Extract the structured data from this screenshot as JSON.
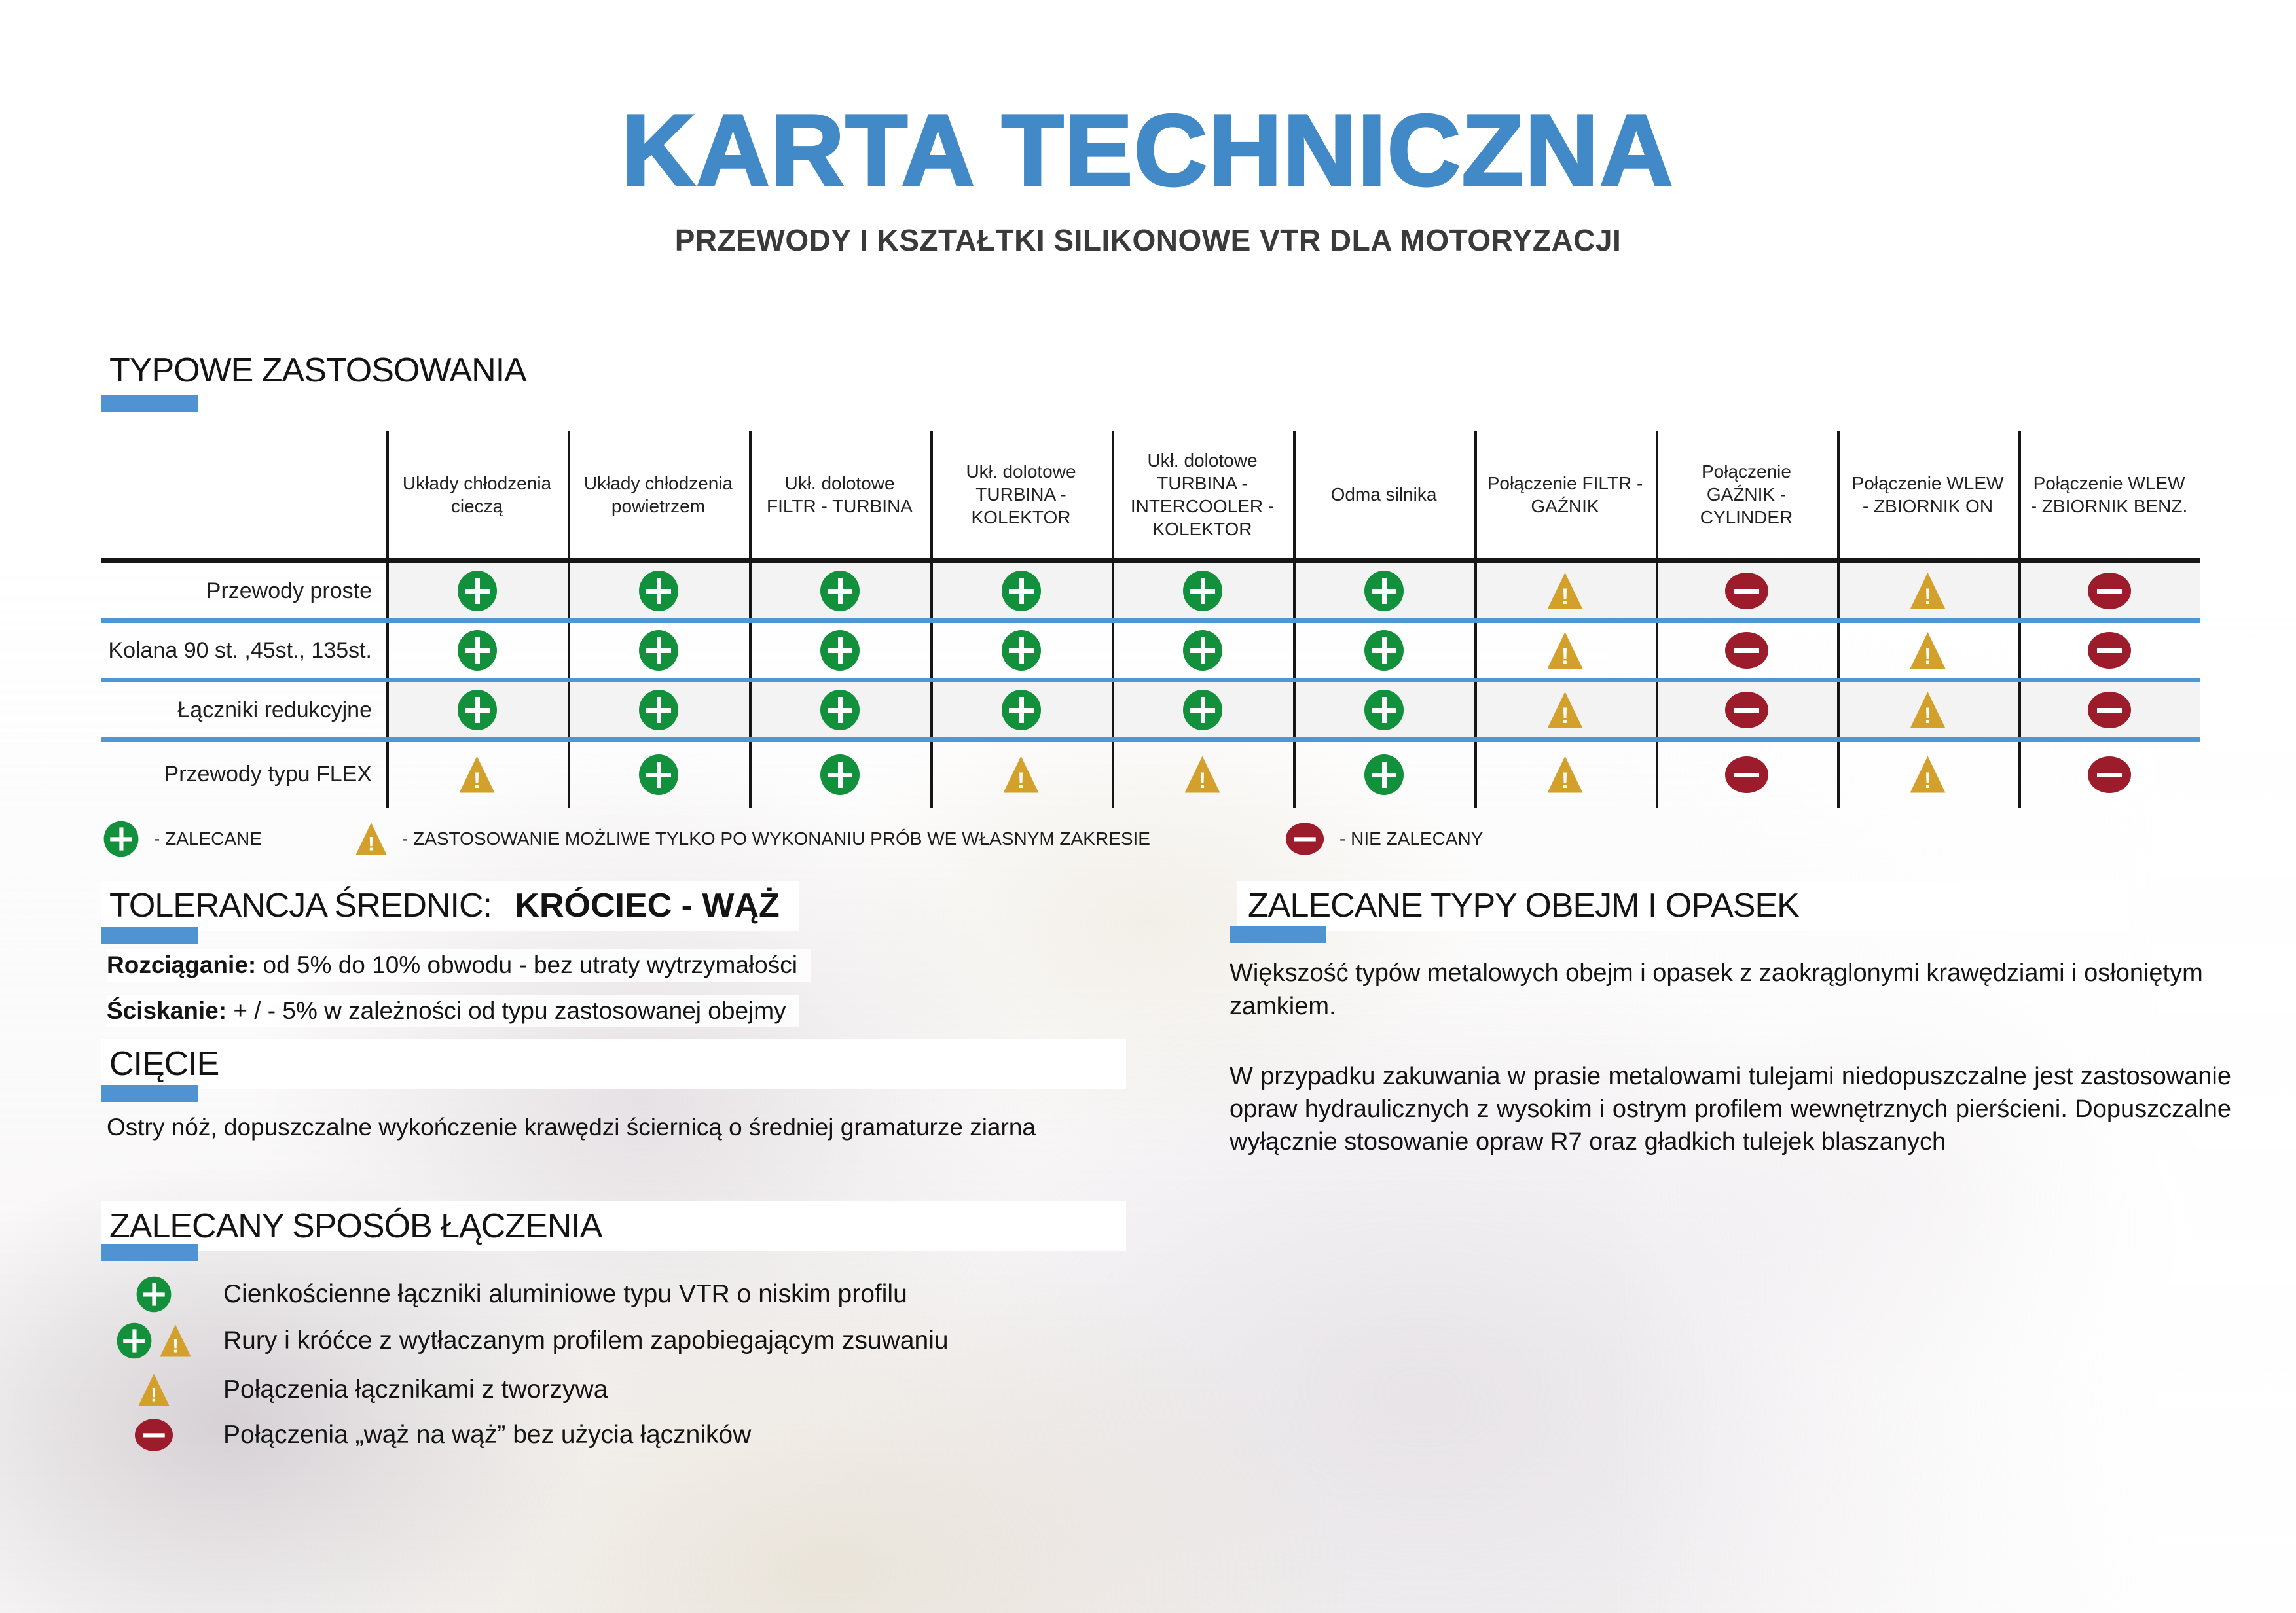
{
  "page": {
    "title": "KARTA TECHNICZNA",
    "subtitle": "PRZEWODY I KSZTAŁTKI SILIKONOWE VTR DLA MOTORYZACJI"
  },
  "colors": {
    "accent_blue": "#4189c7",
    "separator_blue": "#4f97d4",
    "recommended_green": "#12903c",
    "warning_amber": "#d3a02b",
    "not_recommended_red": "#9c1c2c"
  },
  "applications_table": {
    "section_title": "TYPOWE ZASTOSOWANIA",
    "columns": [
      "Układy chłodzenia cieczą",
      "Układy chłodzenia powietrzem",
      "Ukł. dolotowe FILTR - TURBINA",
      "Ukł. dolotowe TURBINA - KOLEKTOR",
      "Ukł. dolotowe TURBINA - INTERCOOLER - KOLEKTOR",
      "Odma silnika",
      "Połączenie FILTR - GAŹNIK",
      "Połączenie GAŹNIK - CYLINDER",
      "Połączenie WLEW - ZBIORNIK ON",
      "Połączenie WLEW - ZBIORNIK BENZ."
    ],
    "rows": [
      {
        "label": "Przewody proste",
        "cells": [
          "plus",
          "plus",
          "plus",
          "plus",
          "plus",
          "plus",
          "warn",
          "minus",
          "warn",
          "minus"
        ]
      },
      {
        "label": "Kolana 90 st. ,45st., 135st.",
        "cells": [
          "plus",
          "plus",
          "plus",
          "plus",
          "plus",
          "plus",
          "warn",
          "minus",
          "warn",
          "minus"
        ]
      },
      {
        "label": "Łączniki redukcyjne",
        "cells": [
          "plus",
          "plus",
          "plus",
          "plus",
          "plus",
          "plus",
          "warn",
          "minus",
          "warn",
          "minus"
        ]
      },
      {
        "label": "Przewody typu FLEX",
        "cells": [
          "warn",
          "plus",
          "plus",
          "warn",
          "warn",
          "plus",
          "warn",
          "minus",
          "warn",
          "minus"
        ]
      }
    ]
  },
  "legend": [
    {
      "icon": "plus",
      "label": "- ZALECANE"
    },
    {
      "icon": "warn",
      "label": "- ZASTOSOWANIE MOŻLIWE TYLKO PO WYKONANIU PRÓB WE WŁASNYM ZAKRESIE"
    },
    {
      "icon": "minus",
      "label": "- NIE ZALECANY"
    }
  ],
  "tolerance": {
    "title_regular": "TOLERANCJA ŚREDNIC:",
    "title_bold": "KRÓCIEC - WĄŻ",
    "lines": [
      {
        "bold": "Rozciąganie:",
        "text": "  od 5% do 10% obwodu - bez utraty wytrzymałości"
      },
      {
        "bold": "Ściskanie:",
        "text": "  + / -  5%  w zależności od typu zastosowanej obejmy"
      }
    ]
  },
  "cutting": {
    "title": "CIĘCIE",
    "text": "Ostry nóż, dopuszczalne wykończenie krawędzi ściernicą  o średniej gramaturze ziarna"
  },
  "joining": {
    "title": "ZALECANY SPOSÓB ŁĄCZENIA",
    "items": [
      {
        "icons": [
          "plus"
        ],
        "text": "Cienkościenne łączniki aluminiowe typu VTR o niskim profilu"
      },
      {
        "icons": [
          "plus",
          "warn"
        ],
        "text": "Rury i króćce z wytłaczanym profilem zapobiegającym zsuwaniu"
      },
      {
        "icons": [
          "warn"
        ],
        "text": "Połączenia łącznikami z tworzywa"
      },
      {
        "icons": [
          "minus"
        ],
        "text": "Połączenia „wąż na wąż” bez użycia łączników"
      }
    ]
  },
  "clamps": {
    "title": "ZALECANE TYPY OBEJM I OPASEK",
    "paragraphs": [
      "Większość typów metalowych obejm i opasek  z zaokrąglonymi krawędziami i osłoniętym zamkiem.",
      "W przypadku zakuwania w prasie metalowami tulejami niedopuszczalne jest zastosowanie opraw hydraulicznych z wysokim i ostrym profilem wewnętrznych pierścieni. Dopuszczalne wyłącznie stosowanie opraw R7 oraz gładkich tulejek blaszanych"
    ]
  }
}
